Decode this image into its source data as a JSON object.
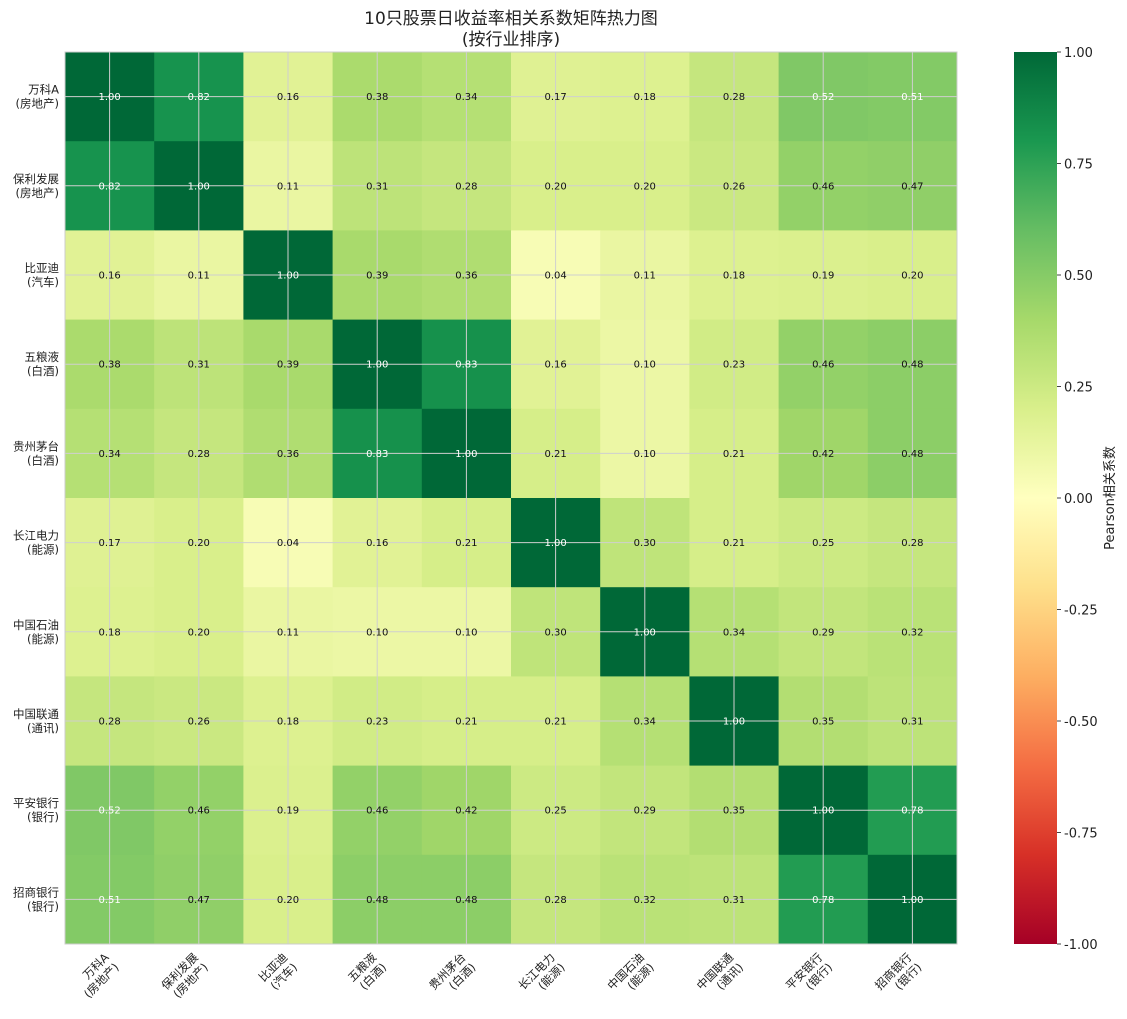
{
  "chart_data": {
    "type": "heatmap",
    "title_lines": [
      "10只股票日收益率相关系数矩阵热力图",
      "(按行业排序)"
    ],
    "row_labels": [
      [
        "万科A",
        "(房地产)"
      ],
      [
        "保利发展",
        "(房地产)"
      ],
      [
        "比亚迪",
        "(汽车)"
      ],
      [
        "五粮液",
        "(白酒)"
      ],
      [
        "贵州茅台",
        "(白酒)"
      ],
      [
        "长江电力",
        "(能源)"
      ],
      [
        "中国石油",
        "(能源)"
      ],
      [
        "中国联通",
        "(通讯)"
      ],
      [
        "平安银行",
        "(银行)"
      ],
      [
        "招商银行",
        "(银行)"
      ]
    ],
    "col_labels": [
      [
        "万科A",
        "(房地产)"
      ],
      [
        "保利发展",
        "(房地产)"
      ],
      [
        "比亚迪",
        "(汽车)"
      ],
      [
        "五粮液",
        "(白酒)"
      ],
      [
        "贵州茅台",
        "(白酒)"
      ],
      [
        "长江电力",
        "(能源)"
      ],
      [
        "中国石油",
        "(能源)"
      ],
      [
        "中国联通",
        "(通讯)"
      ],
      [
        "平安银行",
        "(银行)"
      ],
      [
        "招商银行",
        "(银行)"
      ]
    ],
    "values": [
      [
        1.0,
        0.82,
        0.16,
        0.38,
        0.34,
        0.17,
        0.18,
        0.28,
        0.52,
        0.51
      ],
      [
        0.82,
        1.0,
        0.11,
        0.31,
        0.28,
        0.2,
        0.2,
        0.26,
        0.46,
        0.47
      ],
      [
        0.16,
        0.11,
        1.0,
        0.39,
        0.36,
        0.04,
        0.11,
        0.18,
        0.19,
        0.2
      ],
      [
        0.38,
        0.31,
        0.39,
        1.0,
        0.83,
        0.16,
        0.1,
        0.23,
        0.46,
        0.48
      ],
      [
        0.34,
        0.28,
        0.36,
        0.83,
        1.0,
        0.21,
        0.1,
        0.21,
        0.42,
        0.48
      ],
      [
        0.17,
        0.2,
        0.04,
        0.16,
        0.21,
        1.0,
        0.3,
        0.21,
        0.25,
        0.28
      ],
      [
        0.18,
        0.2,
        0.11,
        0.1,
        0.1,
        0.3,
        1.0,
        0.34,
        0.29,
        0.32
      ],
      [
        0.28,
        0.26,
        0.18,
        0.23,
        0.21,
        0.21,
        0.34,
        1.0,
        0.35,
        0.31
      ],
      [
        0.52,
        0.46,
        0.19,
        0.46,
        0.42,
        0.25,
        0.29,
        0.35,
        1.0,
        0.78
      ],
      [
        0.51,
        0.47,
        0.2,
        0.48,
        0.48,
        0.28,
        0.32,
        0.31,
        0.78,
        1.0
      ]
    ],
    "value_format": "2 decimals",
    "colormap": "RdYlGn",
    "vmin": -1.0,
    "vmax": 1.0,
    "colorbar_label": "Pearson相关系数",
    "colorbar_ticks": [
      "1.00",
      "0.75",
      "0.50",
      "0.25",
      "0.00",
      "-0.25",
      "-0.50",
      "-0.75",
      "-1.00"
    ],
    "colorbar_tick_values": [
      1.0,
      0.75,
      0.5,
      0.25,
      0.0,
      -0.25,
      -0.5,
      -0.75,
      -1.0
    ],
    "grid": true,
    "legend": "colorbar at right"
  }
}
